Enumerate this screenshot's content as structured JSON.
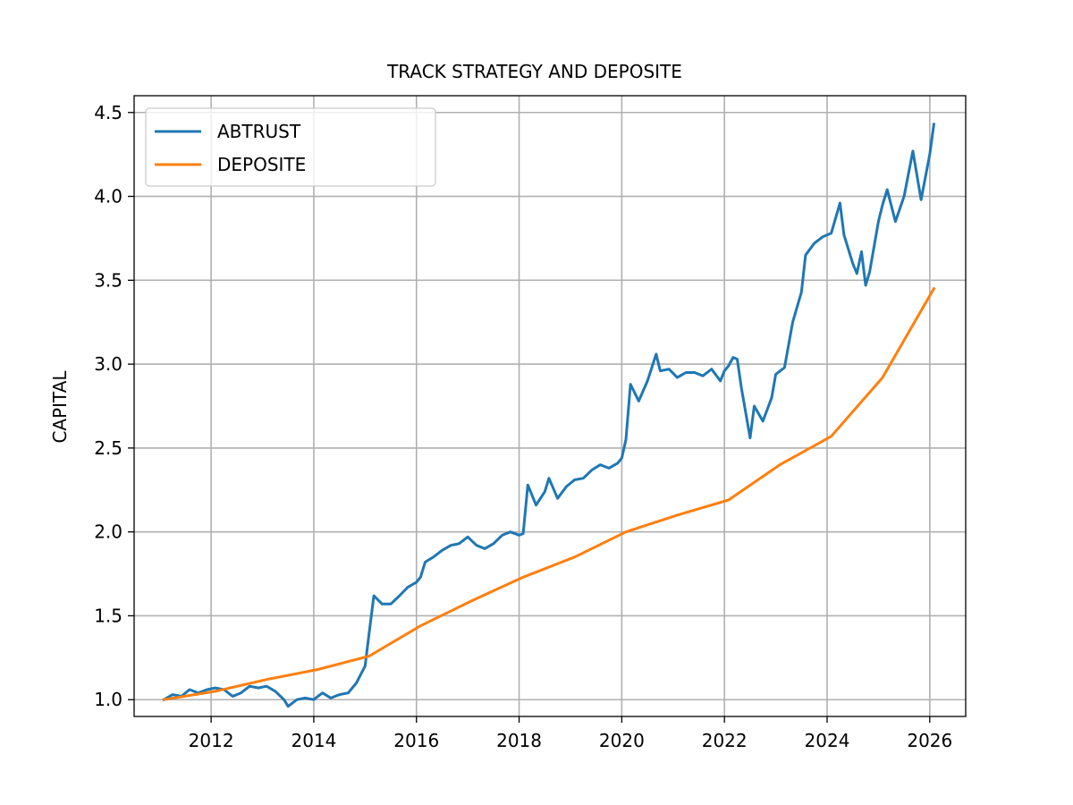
{
  "chart_data": {
    "type": "line",
    "title": "TRACK STRATEGY AND DEPOSITE",
    "xlabel": "",
    "ylabel": "CAPITAL",
    "xlim": [
      2010.5,
      2026.7
    ],
    "ylim": [
      0.9,
      4.6
    ],
    "xticks": [
      2012,
      2014,
      2016,
      2018,
      2020,
      2022,
      2024,
      2026
    ],
    "yticks": [
      1.0,
      1.5,
      2.0,
      2.5,
      3.0,
      3.5,
      4.0,
      4.5
    ],
    "xtick_labels": [
      "2012",
      "2014",
      "2016",
      "2018",
      "2020",
      "2022",
      "2024",
      "2026"
    ],
    "ytick_labels": [
      "1.0",
      "1.5",
      "2.0",
      "2.5",
      "3.0",
      "3.5",
      "4.0",
      "4.5"
    ],
    "grid": true,
    "legend_position": "top-left",
    "series": [
      {
        "name": "ABTRUST",
        "color": "#1f77b4",
        "x": [
          2011.08,
          2011.25,
          2011.42,
          2011.58,
          2011.75,
          2011.92,
          2012.08,
          2012.25,
          2012.42,
          2012.58,
          2012.75,
          2012.92,
          2013.08,
          2013.25,
          2013.42,
          2013.5,
          2013.67,
          2013.83,
          2014.0,
          2014.08,
          2014.17,
          2014.33,
          2014.5,
          2014.67,
          2014.83,
          2015.0,
          2015.08,
          2015.17,
          2015.33,
          2015.5,
          2015.67,
          2015.83,
          2016.0,
          2016.08,
          2016.17,
          2016.33,
          2016.5,
          2016.67,
          2016.83,
          2017.0,
          2017.17,
          2017.33,
          2017.5,
          2017.67,
          2017.83,
          2018.0,
          2018.08,
          2018.17,
          2018.33,
          2018.5,
          2018.58,
          2018.75,
          2018.92,
          2019.08,
          2019.25,
          2019.42,
          2019.58,
          2019.75,
          2019.92,
          2020.0,
          2020.08,
          2020.17,
          2020.33,
          2020.5,
          2020.67,
          2020.75,
          2020.92,
          2021.08,
          2021.25,
          2021.42,
          2021.58,
          2021.75,
          2021.92,
          2022.0,
          2022.08,
          2022.17,
          2022.25,
          2022.33,
          2022.5,
          2022.58,
          2022.75,
          2022.92,
          2023.0,
          2023.17,
          2023.33,
          2023.5,
          2023.58,
          2023.75,
          2023.92,
          2024.08,
          2024.25,
          2024.33,
          2024.5,
          2024.58,
          2024.67,
          2024.75,
          2024.83,
          2025.0,
          2025.08,
          2025.17,
          2025.33,
          2025.5,
          2025.67,
          2025.83,
          2026.0,
          2026.08
        ],
        "y": [
          1.0,
          1.03,
          1.02,
          1.06,
          1.04,
          1.06,
          1.07,
          1.06,
          1.02,
          1.04,
          1.08,
          1.07,
          1.08,
          1.05,
          1.0,
          0.96,
          1.0,
          1.01,
          1.0,
          1.02,
          1.04,
          1.01,
          1.03,
          1.04,
          1.1,
          1.2,
          1.4,
          1.62,
          1.57,
          1.57,
          1.62,
          1.67,
          1.7,
          1.73,
          1.82,
          1.85,
          1.89,
          1.92,
          1.93,
          1.97,
          1.92,
          1.9,
          1.93,
          1.98,
          2.0,
          1.98,
          1.99,
          2.28,
          2.16,
          2.24,
          2.32,
          2.2,
          2.27,
          2.31,
          2.32,
          2.37,
          2.4,
          2.38,
          2.41,
          2.44,
          2.55,
          2.88,
          2.78,
          2.9,
          3.06,
          2.96,
          2.97,
          2.92,
          2.95,
          2.95,
          2.93,
          2.97,
          2.9,
          2.96,
          2.99,
          3.04,
          3.03,
          2.86,
          2.56,
          2.75,
          2.66,
          2.8,
          2.94,
          2.98,
          3.25,
          3.43,
          3.65,
          3.72,
          3.76,
          3.78,
          3.96,
          3.77,
          3.6,
          3.54,
          3.67,
          3.47,
          3.55,
          3.85,
          3.95,
          4.04,
          3.85,
          4.0,
          4.27,
          3.98,
          4.25,
          4.43
        ]
      },
      {
        "name": "DEPOSITE",
        "color": "#ff7f0e",
        "x": [
          2011.08,
          2012.08,
          2013.08,
          2014.08,
          2015.08,
          2016.08,
          2017.08,
          2018.08,
          2019.08,
          2020.08,
          2021.08,
          2022.08,
          2023.08,
          2024.08,
          2025.08,
          2026.08
        ],
        "y": [
          1.0,
          1.05,
          1.12,
          1.18,
          1.26,
          1.44,
          1.59,
          1.73,
          1.85,
          2.0,
          2.1,
          2.19,
          2.4,
          2.57,
          2.92,
          3.45
        ]
      }
    ]
  }
}
